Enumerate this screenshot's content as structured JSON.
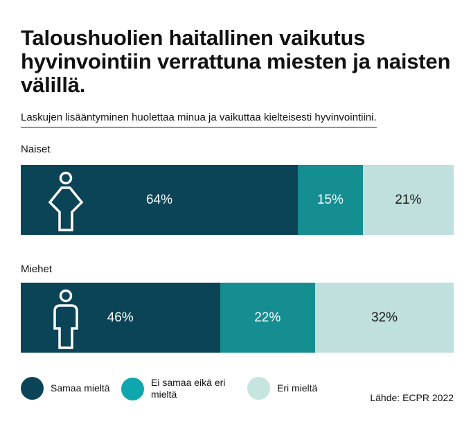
{
  "title": "Taloushuolien haitallinen vaikutus hyvinvointiin verrattuna miesten ja naisten välillä.",
  "subtitle": "Laskujen lisääntyminen huolettaa minua ja vaikuttaa kielteisesti hyvinvointiini.",
  "source": "Lähde: ECPR 2022",
  "colors": {
    "agree": "#0b4456",
    "neutral": "#148e91",
    "disagree": "#bfe0dc"
  },
  "legend": [
    {
      "label": "Samaa mieltä",
      "color": "#0b4456"
    },
    {
      "label": "Ei samaa eikä eri mieltä",
      "color": "#0fa6ad"
    },
    {
      "label": "Eri mieltä",
      "color": "#c6e4e0"
    }
  ],
  "chart_data": {
    "type": "bar",
    "orientation": "horizontal",
    "stacked": true,
    "normalized": true,
    "categories": [
      "Naiset",
      "Miehet"
    ],
    "category_icons": [
      "female-person-icon",
      "male-person-icon"
    ],
    "series": [
      {
        "name": "Samaa mieltä",
        "values": [
          64,
          46
        ],
        "labels": [
          "64%",
          "46%"
        ]
      },
      {
        "name": "Ei samaa eikä eri mieltä",
        "values": [
          15,
          22
        ],
        "labels": [
          "15%",
          "22%"
        ]
      },
      {
        "name": "Eri mieltä",
        "values": [
          21,
          32
        ],
        "labels": [
          "21%",
          "32%"
        ]
      }
    ],
    "xlim": [
      0,
      100
    ],
    "grid": false,
    "legend_position": "bottom-left"
  }
}
